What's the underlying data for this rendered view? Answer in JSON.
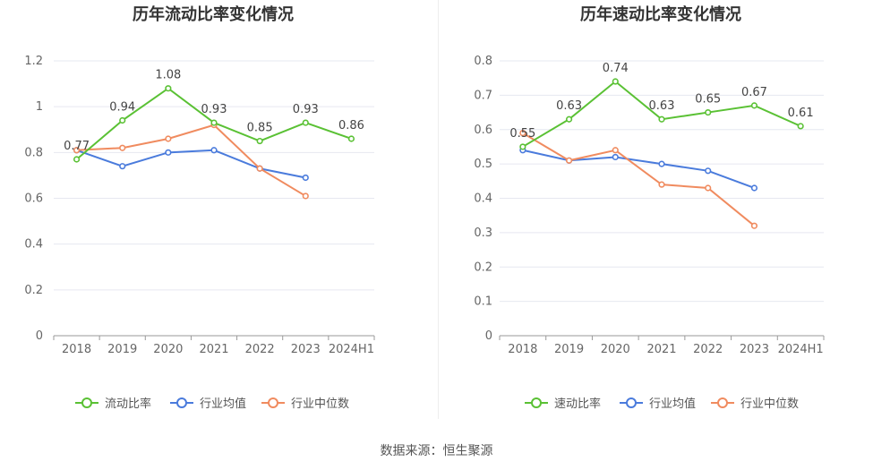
{
  "source_text": "数据来源：恒生聚源",
  "chart_data": [
    {
      "type": "line",
      "title": "历年流动比率变化情况",
      "categories": [
        "2018",
        "2019",
        "2020",
        "2021",
        "2022",
        "2023",
        "2024H1"
      ],
      "ylim": [
        0,
        1.2
      ],
      "yticks": [
        "0",
        "0.2",
        "0.4",
        "0.6",
        "0.8",
        "1",
        "1.2"
      ],
      "grid": true,
      "legend_position": "bottom",
      "series": [
        {
          "name": "流动比率",
          "color": "#5ac134",
          "values": [
            0.77,
            0.94,
            1.08,
            0.93,
            0.85,
            0.93,
            0.86
          ],
          "labels": [
            "0.77",
            "0.94",
            "1.08",
            "0.93",
            "0.85",
            "0.93",
            "0.86"
          ]
        },
        {
          "name": "行业均值",
          "color": "#4a7bdc",
          "values": [
            0.81,
            0.74,
            0.8,
            0.81,
            0.73,
            0.69,
            null
          ]
        },
        {
          "name": "行业中位数",
          "color": "#f08b5f",
          "values": [
            0.81,
            0.82,
            0.86,
            0.92,
            0.73,
            0.61,
            null
          ]
        }
      ]
    },
    {
      "type": "line",
      "title": "历年速动比率变化情况",
      "categories": [
        "2018",
        "2019",
        "2020",
        "2021",
        "2022",
        "2023",
        "2024H1"
      ],
      "ylim": [
        0,
        0.8
      ],
      "yticks": [
        "0",
        "0.1",
        "0.2",
        "0.3",
        "0.4",
        "0.5",
        "0.6",
        "0.7",
        "0.8"
      ],
      "grid": true,
      "legend_position": "bottom",
      "series": [
        {
          "name": "速动比率",
          "color": "#5ac134",
          "values": [
            0.55,
            0.63,
            0.74,
            0.63,
            0.65,
            0.67,
            0.61
          ],
          "labels": [
            "0.55",
            "0.63",
            "0.74",
            "0.63",
            "0.65",
            "0.67",
            "0.61"
          ]
        },
        {
          "name": "行业均值",
          "color": "#4a7bdc",
          "values": [
            0.54,
            0.51,
            0.52,
            0.5,
            0.48,
            0.43,
            null
          ]
        },
        {
          "name": "行业中位数",
          "color": "#f08b5f",
          "values": [
            0.59,
            0.51,
            0.54,
            0.44,
            0.43,
            0.32,
            null
          ]
        }
      ]
    }
  ]
}
